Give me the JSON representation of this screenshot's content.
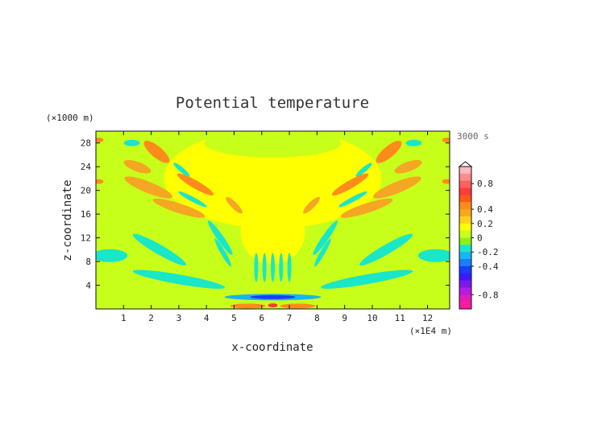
{
  "chart_data": {
    "type": "heatmap",
    "title": "Potential temperature",
    "time_label": "3000 s",
    "xlabel": "x-coordinate",
    "ylabel": "z-coordinate",
    "x_unit": "(×1E4 m)",
    "y_unit": "(×1000 m)",
    "xlim": [
      0,
      12.8
    ],
    "ylim": [
      0,
      30
    ],
    "x_ticks": [
      "1",
      "2",
      "3",
      "4",
      "5",
      "6",
      "7",
      "8",
      "9",
      "10",
      "11",
      "12"
    ],
    "y_ticks": [
      "4",
      "8",
      "12",
      "16",
      "20",
      "24",
      "28"
    ],
    "colorbar": {
      "ticks": [
        "0.8",
        "0.4",
        "0.2",
        "0",
        "-0.2",
        "-0.4",
        "-0.8"
      ],
      "levels": [
        {
          "color": "#ffb6c1"
        },
        {
          "color": "#ff8a8a"
        },
        {
          "color": "#ff6060"
        },
        {
          "color": "#ff3a3a"
        },
        {
          "color": "#ff5a1a"
        },
        {
          "color": "#ff8c1a"
        },
        {
          "color": "#f5a623"
        },
        {
          "color": "#ffd21a"
        },
        {
          "color": "#ffff00"
        },
        {
          "color": "#c8ff1a"
        },
        {
          "color": "#8cf01a"
        },
        {
          "color": "#1ae6c8"
        },
        {
          "color": "#1ab4f0"
        },
        {
          "color": "#1a7cff"
        },
        {
          "color": "#1a3cff"
        },
        {
          "color": "#3c1aff"
        },
        {
          "color": "#7a1ae6"
        },
        {
          "color": "#b41ae6"
        },
        {
          "color": "#e61ab4"
        },
        {
          "color": "#ff1aa0"
        }
      ]
    }
  }
}
